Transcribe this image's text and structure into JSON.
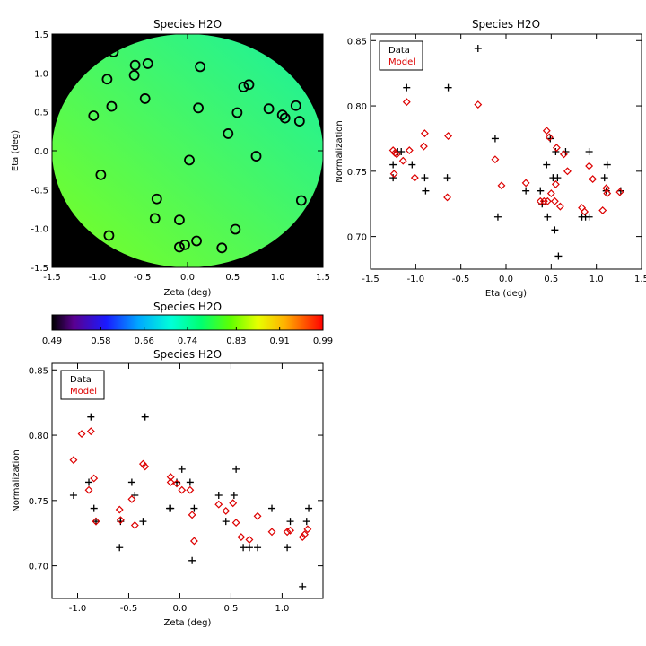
{
  "colors": {
    "data": "#000000",
    "model": "#dd0000",
    "frame": "#000000",
    "background": "#ffffff"
  },
  "chart_data": [
    {
      "id": "map",
      "type": "heatmap",
      "title": "Species H2O",
      "xlabel": "Zeta (deg)",
      "ylabel": "Eta (deg)",
      "xlim": [
        -1.5,
        1.5
      ],
      "ylim": [
        -1.5,
        1.5
      ],
      "xticks": [
        "-1.5",
        "-1.0",
        "-0.5",
        "0.0",
        "0.5",
        "1.0",
        "1.5"
      ],
      "yticks": [
        "-1.5",
        "-1.0",
        "-0.5",
        "0.0",
        "0.5",
        "1.0",
        "1.5"
      ],
      "grid": false,
      "field_radius": 1.5,
      "gradient": {
        "from": "#7aff22",
        "to": "#19f0a0",
        "direction": "lower-left to upper-right"
      },
      "stations": [
        [
          -0.82,
          1.27
        ],
        [
          -0.58,
          1.1
        ],
        [
          -0.44,
          1.12
        ],
        [
          0.14,
          1.08
        ],
        [
          -0.89,
          0.92
        ],
        [
          -0.59,
          0.97
        ],
        [
          0.62,
          0.82
        ],
        [
          0.68,
          0.85
        ],
        [
          -1.04,
          0.45
        ],
        [
          -0.84,
          0.57
        ],
        [
          -0.47,
          0.67
        ],
        [
          0.12,
          0.55
        ],
        [
          0.55,
          0.49
        ],
        [
          0.9,
          0.54
        ],
        [
          1.05,
          0.46
        ],
        [
          1.08,
          0.42
        ],
        [
          1.2,
          0.58
        ],
        [
          1.24,
          0.38
        ],
        [
          0.45,
          0.22
        ],
        [
          0.76,
          -0.07
        ],
        [
          0.02,
          -0.12
        ],
        [
          -0.96,
          -0.31
        ],
        [
          -0.34,
          -0.62
        ],
        [
          1.26,
          -0.64
        ],
        [
          -0.36,
          -0.87
        ],
        [
          -0.09,
          -0.89
        ],
        [
          0.53,
          -1.01
        ],
        [
          -0.87,
          -1.09
        ],
        [
          0.1,
          -1.16
        ],
        [
          -0.03,
          -1.21
        ],
        [
          -0.09,
          -1.24
        ],
        [
          0.38,
          -1.25
        ]
      ]
    },
    {
      "id": "colorbar",
      "type": "colorbar",
      "title": "Species H2O",
      "range": [
        0.49,
        0.99
      ],
      "ticks": [
        "0.49",
        "0.58",
        "0.66",
        "0.74",
        "0.83",
        "0.91",
        "0.99"
      ]
    },
    {
      "id": "eta",
      "type": "scatter",
      "title": "Species H2O",
      "xlabel": "Eta (deg)",
      "ylabel": "Normalization",
      "xlim": [
        -1.5,
        1.5
      ],
      "ylim": [
        0.675,
        0.855
      ],
      "xticks": [
        "-1.5",
        "-1.0",
        "-0.5",
        "0.0",
        "0.5",
        "1.0",
        "1.5"
      ],
      "yticks": [
        "0.70",
        "0.75",
        "0.80",
        "0.85"
      ],
      "grid": false,
      "legend": "top-left",
      "series": [
        {
          "name": "Data",
          "marker": "plus",
          "points": [
            [
              -1.25,
              0.755
            ],
            [
              -1.25,
              0.745
            ],
            [
              -1.2,
              0.765
            ],
            [
              -1.16,
              0.765
            ],
            [
              -1.1,
              0.814
            ],
            [
              -1.04,
              0.755
            ],
            [
              -0.9,
              0.745
            ],
            [
              -0.89,
              0.735
            ],
            [
              -0.64,
              0.814
            ],
            [
              -0.65,
              0.745
            ],
            [
              -0.31,
              0.844
            ],
            [
              -0.12,
              0.775
            ],
            [
              -0.09,
              0.715
            ],
            [
              0.22,
              0.735
            ],
            [
              0.38,
              0.735
            ],
            [
              0.4,
              0.725
            ],
            [
              0.45,
              0.755
            ],
            [
              0.46,
              0.715
            ],
            [
              0.49,
              0.775
            ],
            [
              0.52,
              0.745
            ],
            [
              0.54,
              0.705
            ],
            [
              0.55,
              0.765
            ],
            [
              0.57,
              0.745
            ],
            [
              0.58,
              0.685
            ],
            [
              0.66,
              0.765
            ],
            [
              0.84,
              0.715
            ],
            [
              0.88,
              0.715
            ],
            [
              0.92,
              0.765
            ],
            [
              0.92,
              0.715
            ],
            [
              1.09,
              0.745
            ],
            [
              1.12,
              0.755
            ],
            [
              1.11,
              0.735
            ],
            [
              1.27,
              0.735
            ]
          ]
        },
        {
          "name": "Model",
          "marker": "diamond",
          "points": [
            [
              -1.25,
              0.766
            ],
            [
              -1.23,
              0.764
            ],
            [
              -1.21,
              0.763
            ],
            [
              -1.24,
              0.748
            ],
            [
              -1.14,
              0.758
            ],
            [
              -1.1,
              0.803
            ],
            [
              -1.07,
              0.766
            ],
            [
              -1.01,
              0.745
            ],
            [
              -0.9,
              0.779
            ],
            [
              -0.91,
              0.769
            ],
            [
              -0.64,
              0.777
            ],
            [
              -0.65,
              0.73
            ],
            [
              -0.31,
              0.801
            ],
            [
              -0.12,
              0.759
            ],
            [
              -0.05,
              0.739
            ],
            [
              0.22,
              0.741
            ],
            [
              0.38,
              0.727
            ],
            [
              0.42,
              0.727
            ],
            [
              0.45,
              0.781
            ],
            [
              0.46,
              0.727
            ],
            [
              0.48,
              0.776
            ],
            [
              0.5,
              0.733
            ],
            [
              0.54,
              0.727
            ],
            [
              0.55,
              0.74
            ],
            [
              0.56,
              0.768
            ],
            [
              0.6,
              0.723
            ],
            [
              0.64,
              0.763
            ],
            [
              0.68,
              0.75
            ],
            [
              0.84,
              0.722
            ],
            [
              0.87,
              0.719
            ],
            [
              0.92,
              0.754
            ],
            [
              0.96,
              0.744
            ],
            [
              1.07,
              0.72
            ],
            [
              1.12,
              0.733
            ],
            [
              1.11,
              0.737
            ],
            [
              1.26,
              0.734
            ]
          ]
        }
      ]
    },
    {
      "id": "zeta",
      "type": "scatter",
      "title": "Species H2O",
      "xlabel": "Zeta (deg)",
      "ylabel": "Normalization",
      "xlim": [
        -1.25,
        1.4
      ],
      "ylim": [
        0.675,
        0.855
      ],
      "xticks": [
        "-1.0",
        "-0.5",
        "0.0",
        "0.5",
        "1.0"
      ],
      "yticks": [
        "0.70",
        "0.75",
        "0.80",
        "0.85"
      ],
      "grid": false,
      "legend": "top-left",
      "series": [
        {
          "name": "Data",
          "marker": "plus",
          "points": [
            [
              -1.04,
              0.754
            ],
            [
              -0.89,
              0.764
            ],
            [
              -0.87,
              0.814
            ],
            [
              -0.84,
              0.744
            ],
            [
              -0.82,
              0.734
            ],
            [
              -0.59,
              0.714
            ],
            [
              -0.58,
              0.734
            ],
            [
              -0.47,
              0.764
            ],
            [
              -0.44,
              0.754
            ],
            [
              -0.36,
              0.734
            ],
            [
              -0.34,
              0.814
            ],
            [
              -0.09,
              0.744
            ],
            [
              -0.1,
              0.744
            ],
            [
              -0.03,
              0.764
            ],
            [
              0.02,
              0.774
            ],
            [
              0.1,
              0.764
            ],
            [
              0.12,
              0.704
            ],
            [
              0.14,
              0.744
            ],
            [
              0.38,
              0.754
            ],
            [
              0.45,
              0.734
            ],
            [
              0.53,
              0.754
            ],
            [
              0.55,
              0.774
            ],
            [
              0.62,
              0.714
            ],
            [
              0.68,
              0.714
            ],
            [
              0.76,
              0.714
            ],
            [
              0.9,
              0.744
            ],
            [
              1.05,
              0.714
            ],
            [
              1.08,
              0.734
            ],
            [
              1.2,
              0.684
            ],
            [
              1.24,
              0.734
            ],
            [
              1.26,
              0.744
            ]
          ]
        },
        {
          "name": "Model",
          "marker": "diamond",
          "points": [
            [
              -1.04,
              0.781
            ],
            [
              -0.96,
              0.801
            ],
            [
              -0.89,
              0.758
            ],
            [
              -0.87,
              0.803
            ],
            [
              -0.84,
              0.767
            ],
            [
              -0.82,
              0.734
            ],
            [
              -0.59,
              0.743
            ],
            [
              -0.58,
              0.735
            ],
            [
              -0.47,
              0.751
            ],
            [
              -0.44,
              0.731
            ],
            [
              -0.36,
              0.778
            ],
            [
              -0.34,
              0.776
            ],
            [
              -0.09,
              0.768
            ],
            [
              -0.09,
              0.764
            ],
            [
              -0.03,
              0.763
            ],
            [
              0.02,
              0.758
            ],
            [
              0.1,
              0.758
            ],
            [
              0.12,
              0.739
            ],
            [
              0.14,
              0.719
            ],
            [
              0.38,
              0.747
            ],
            [
              0.45,
              0.742
            ],
            [
              0.52,
              0.748
            ],
            [
              0.55,
              0.733
            ],
            [
              0.6,
              0.722
            ],
            [
              0.68,
              0.72
            ],
            [
              0.76,
              0.738
            ],
            [
              0.9,
              0.726
            ],
            [
              1.05,
              0.726
            ],
            [
              1.08,
              0.727
            ],
            [
              1.2,
              0.722
            ],
            [
              1.22,
              0.724
            ],
            [
              1.25,
              0.728
            ]
          ]
        }
      ]
    }
  ]
}
